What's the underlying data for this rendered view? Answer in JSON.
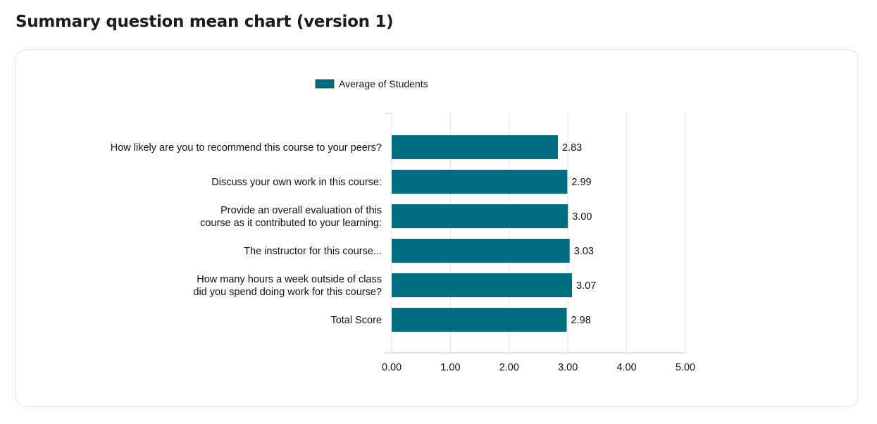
{
  "page": {
    "title": "Summary question mean chart (version 1)"
  },
  "chart_data": {
    "type": "bar",
    "orientation": "horizontal",
    "categories": [
      [
        "How likely are you to recommend this course to your peers?"
      ],
      [
        "Discuss your own work in this course:"
      ],
      [
        "Provide an overall evaluation of this",
        "course as it contributed to your learning:"
      ],
      [
        "The instructor for this course..."
      ],
      [
        "How many hours a week outside of class",
        "did you spend doing work for this course?"
      ],
      [
        "Total Score"
      ]
    ],
    "series": [
      {
        "name": "Average of Students",
        "values": [
          2.83,
          2.99,
          3.0,
          3.03,
          3.07,
          2.98
        ],
        "value_labels": [
          "2.83",
          "2.99",
          "3.00",
          "3.03",
          "3.07",
          "2.98"
        ],
        "color": "#006e80"
      }
    ],
    "xlim": [
      0,
      5
    ],
    "xticks": [
      0,
      1,
      2,
      3,
      4,
      5
    ],
    "xtick_labels": [
      "0.00",
      "1.00",
      "2.00",
      "3.00",
      "4.00",
      "5.00"
    ],
    "grid": true,
    "legend_position": "top"
  }
}
